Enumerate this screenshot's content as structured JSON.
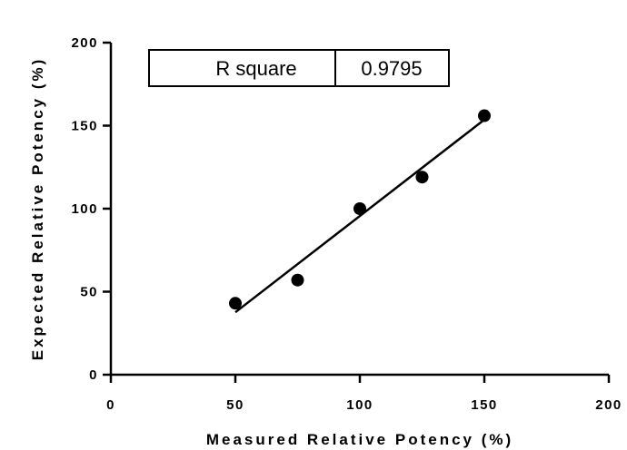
{
  "chart_data": {
    "type": "scatter",
    "title": "",
    "xlabel": "Measured Relative Potency (%)",
    "ylabel": "Expected Relative Potency (%)",
    "xlim": [
      0,
      200
    ],
    "ylim": [
      0,
      200
    ],
    "xticks": [
      0,
      50,
      100,
      150,
      200
    ],
    "yticks": [
      0,
      50,
      100,
      150,
      200
    ],
    "grid": false,
    "series": [
      {
        "x": [
          50,
          75,
          100,
          125,
          150
        ],
        "y": [
          43,
          57,
          100,
          119,
          156
        ]
      }
    ],
    "fit_line": {
      "x": [
        50,
        150
      ],
      "y": [
        37.6,
        153.6
      ]
    },
    "annotation": {
      "label": "R square",
      "value": "0.9795"
    }
  }
}
